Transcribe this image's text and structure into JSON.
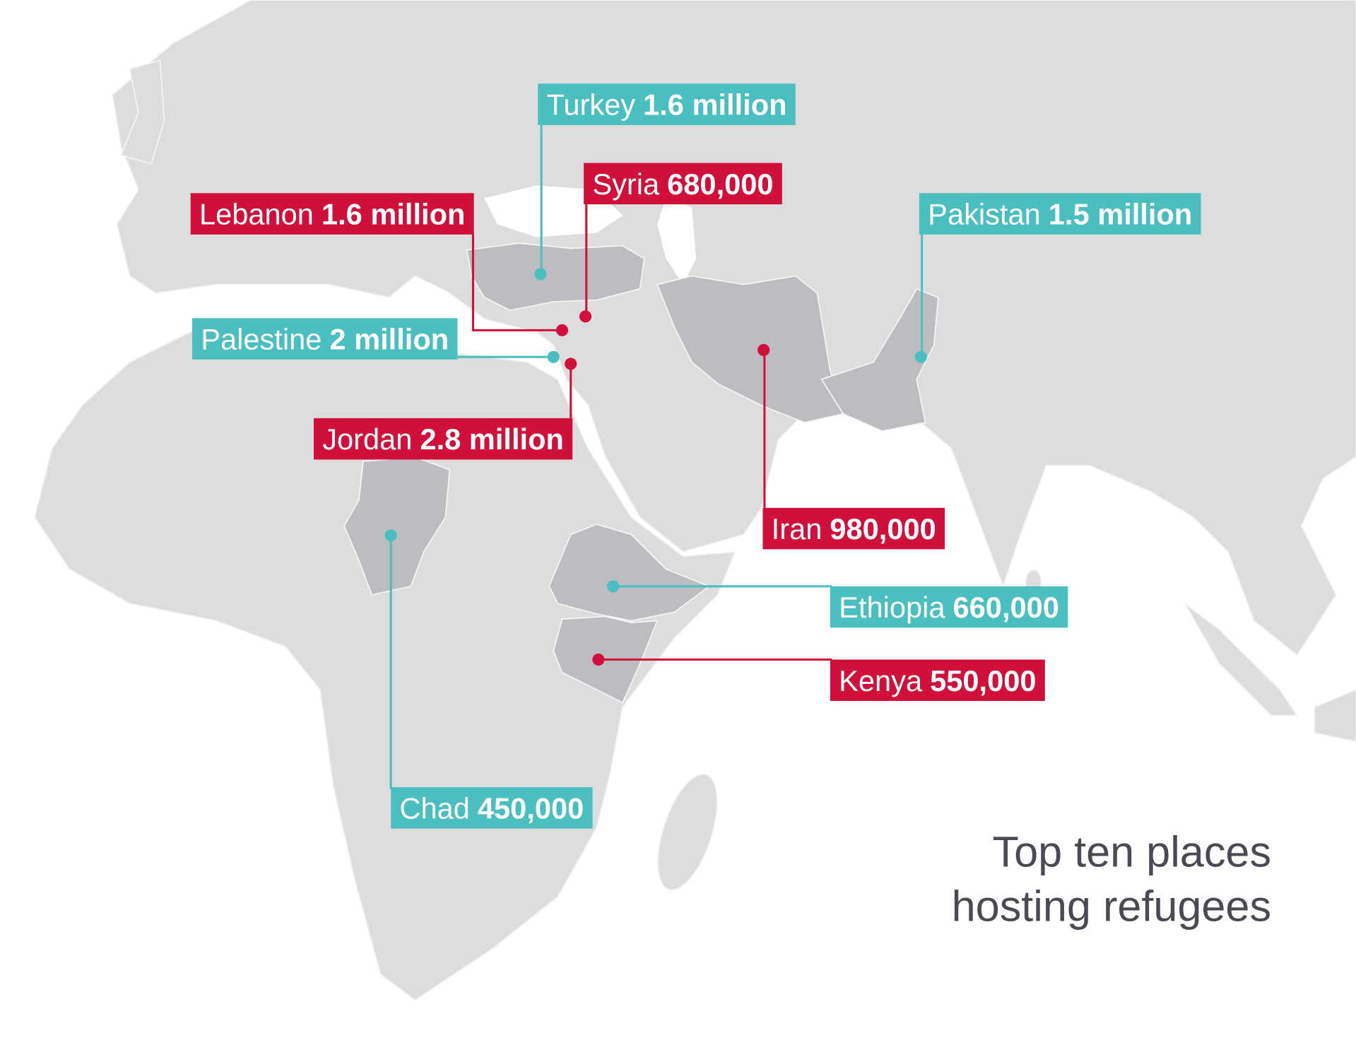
{
  "title": [
    "Top ten places",
    "hosting refugees"
  ],
  "places": [
    {
      "name": "Turkey",
      "value": "1.6 million"
    },
    {
      "name": "Syria",
      "value": "680,000"
    },
    {
      "name": "Lebanon",
      "value": "1.6 million"
    },
    {
      "name": "Pakistan",
      "value": "1.5 million"
    },
    {
      "name": "Palestine",
      "value": "2 million"
    },
    {
      "name": "Jordan",
      "value": "2.8 million"
    },
    {
      "name": "Iran",
      "value": "980,000"
    },
    {
      "name": "Ethiopia",
      "value": "660,000"
    },
    {
      "name": "Kenya",
      "value": "550,000"
    },
    {
      "name": "Chad",
      "value": "450,000"
    }
  ]
}
